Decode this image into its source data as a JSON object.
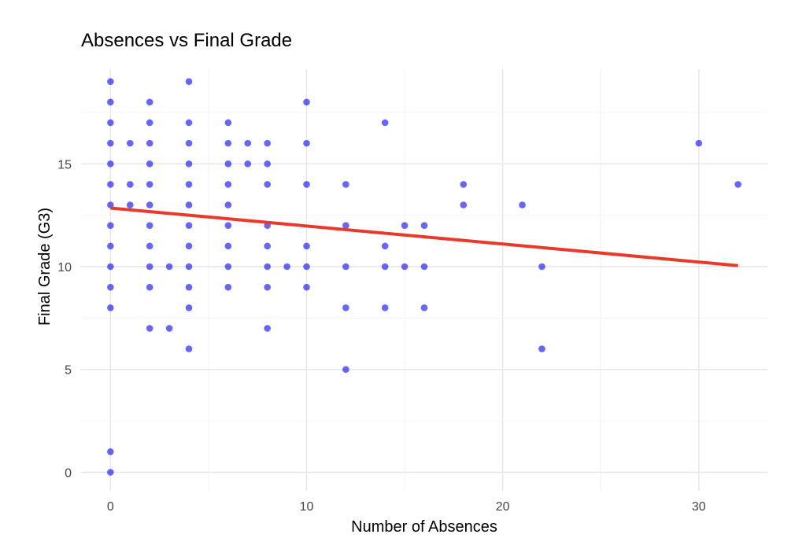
{
  "chart_data": {
    "type": "scatter",
    "title": "Absences vs Final Grade",
    "xlabel": "Number of Absences",
    "ylabel": "Final Grade (G3)",
    "xlim": [
      -1.5,
      33.5
    ],
    "ylim": [
      -0.9,
      19.6
    ],
    "x_ticks": [
      0,
      10,
      20,
      30
    ],
    "y_ticks": [
      0,
      5,
      10,
      15
    ],
    "grid": true,
    "legend": "none",
    "point_color": "#0000ff",
    "trend_color": "#e8392a",
    "points": [
      [
        0,
        19
      ],
      [
        0,
        18
      ],
      [
        0,
        17
      ],
      [
        0,
        16
      ],
      [
        0,
        15
      ],
      [
        0,
        14
      ],
      [
        0,
        13
      ],
      [
        0,
        12
      ],
      [
        0,
        11
      ],
      [
        0,
        10
      ],
      [
        0,
        9
      ],
      [
        0,
        8
      ],
      [
        0,
        1
      ],
      [
        0,
        0
      ],
      [
        1,
        16
      ],
      [
        1,
        14
      ],
      [
        1,
        13
      ],
      [
        2,
        18
      ],
      [
        2,
        17
      ],
      [
        2,
        16
      ],
      [
        2,
        15
      ],
      [
        2,
        14
      ],
      [
        2,
        13
      ],
      [
        2,
        12
      ],
      [
        2,
        11
      ],
      [
        2,
        10
      ],
      [
        2,
        9
      ],
      [
        2,
        7
      ],
      [
        3,
        10
      ],
      [
        3,
        7
      ],
      [
        4,
        19
      ],
      [
        4,
        17
      ],
      [
        4,
        16
      ],
      [
        4,
        15
      ],
      [
        4,
        14
      ],
      [
        4,
        13
      ],
      [
        4,
        12
      ],
      [
        4,
        11
      ],
      [
        4,
        10
      ],
      [
        4,
        9
      ],
      [
        4,
        8
      ],
      [
        4,
        6
      ],
      [
        6,
        17
      ],
      [
        6,
        16
      ],
      [
        6,
        15
      ],
      [
        6,
        14
      ],
      [
        6,
        13
      ],
      [
        6,
        12
      ],
      [
        6,
        11
      ],
      [
        6,
        10
      ],
      [
        6,
        9
      ],
      [
        7,
        16
      ],
      [
        7,
        15
      ],
      [
        8,
        16
      ],
      [
        8,
        15
      ],
      [
        8,
        14
      ],
      [
        8,
        12
      ],
      [
        8,
        11
      ],
      [
        8,
        10
      ],
      [
        8,
        9
      ],
      [
        8,
        7
      ],
      [
        9,
        10
      ],
      [
        10,
        18
      ],
      [
        10,
        16
      ],
      [
        10,
        14
      ],
      [
        10,
        11
      ],
      [
        10,
        10
      ],
      [
        10,
        9
      ],
      [
        12,
        14
      ],
      [
        12,
        12
      ],
      [
        12,
        10
      ],
      [
        12,
        8
      ],
      [
        12,
        5
      ],
      [
        14,
        17
      ],
      [
        14,
        11
      ],
      [
        14,
        10
      ],
      [
        14,
        8
      ],
      [
        15,
        12
      ],
      [
        15,
        10
      ],
      [
        16,
        12
      ],
      [
        16,
        10
      ],
      [
        16,
        8
      ],
      [
        18,
        14
      ],
      [
        18,
        13
      ],
      [
        21,
        13
      ],
      [
        22,
        10
      ],
      [
        22,
        6
      ],
      [
        30,
        16
      ],
      [
        32,
        14
      ]
    ],
    "trend_line": {
      "x": [
        0,
        32
      ],
      "y": [
        12.85,
        10.05
      ]
    }
  }
}
